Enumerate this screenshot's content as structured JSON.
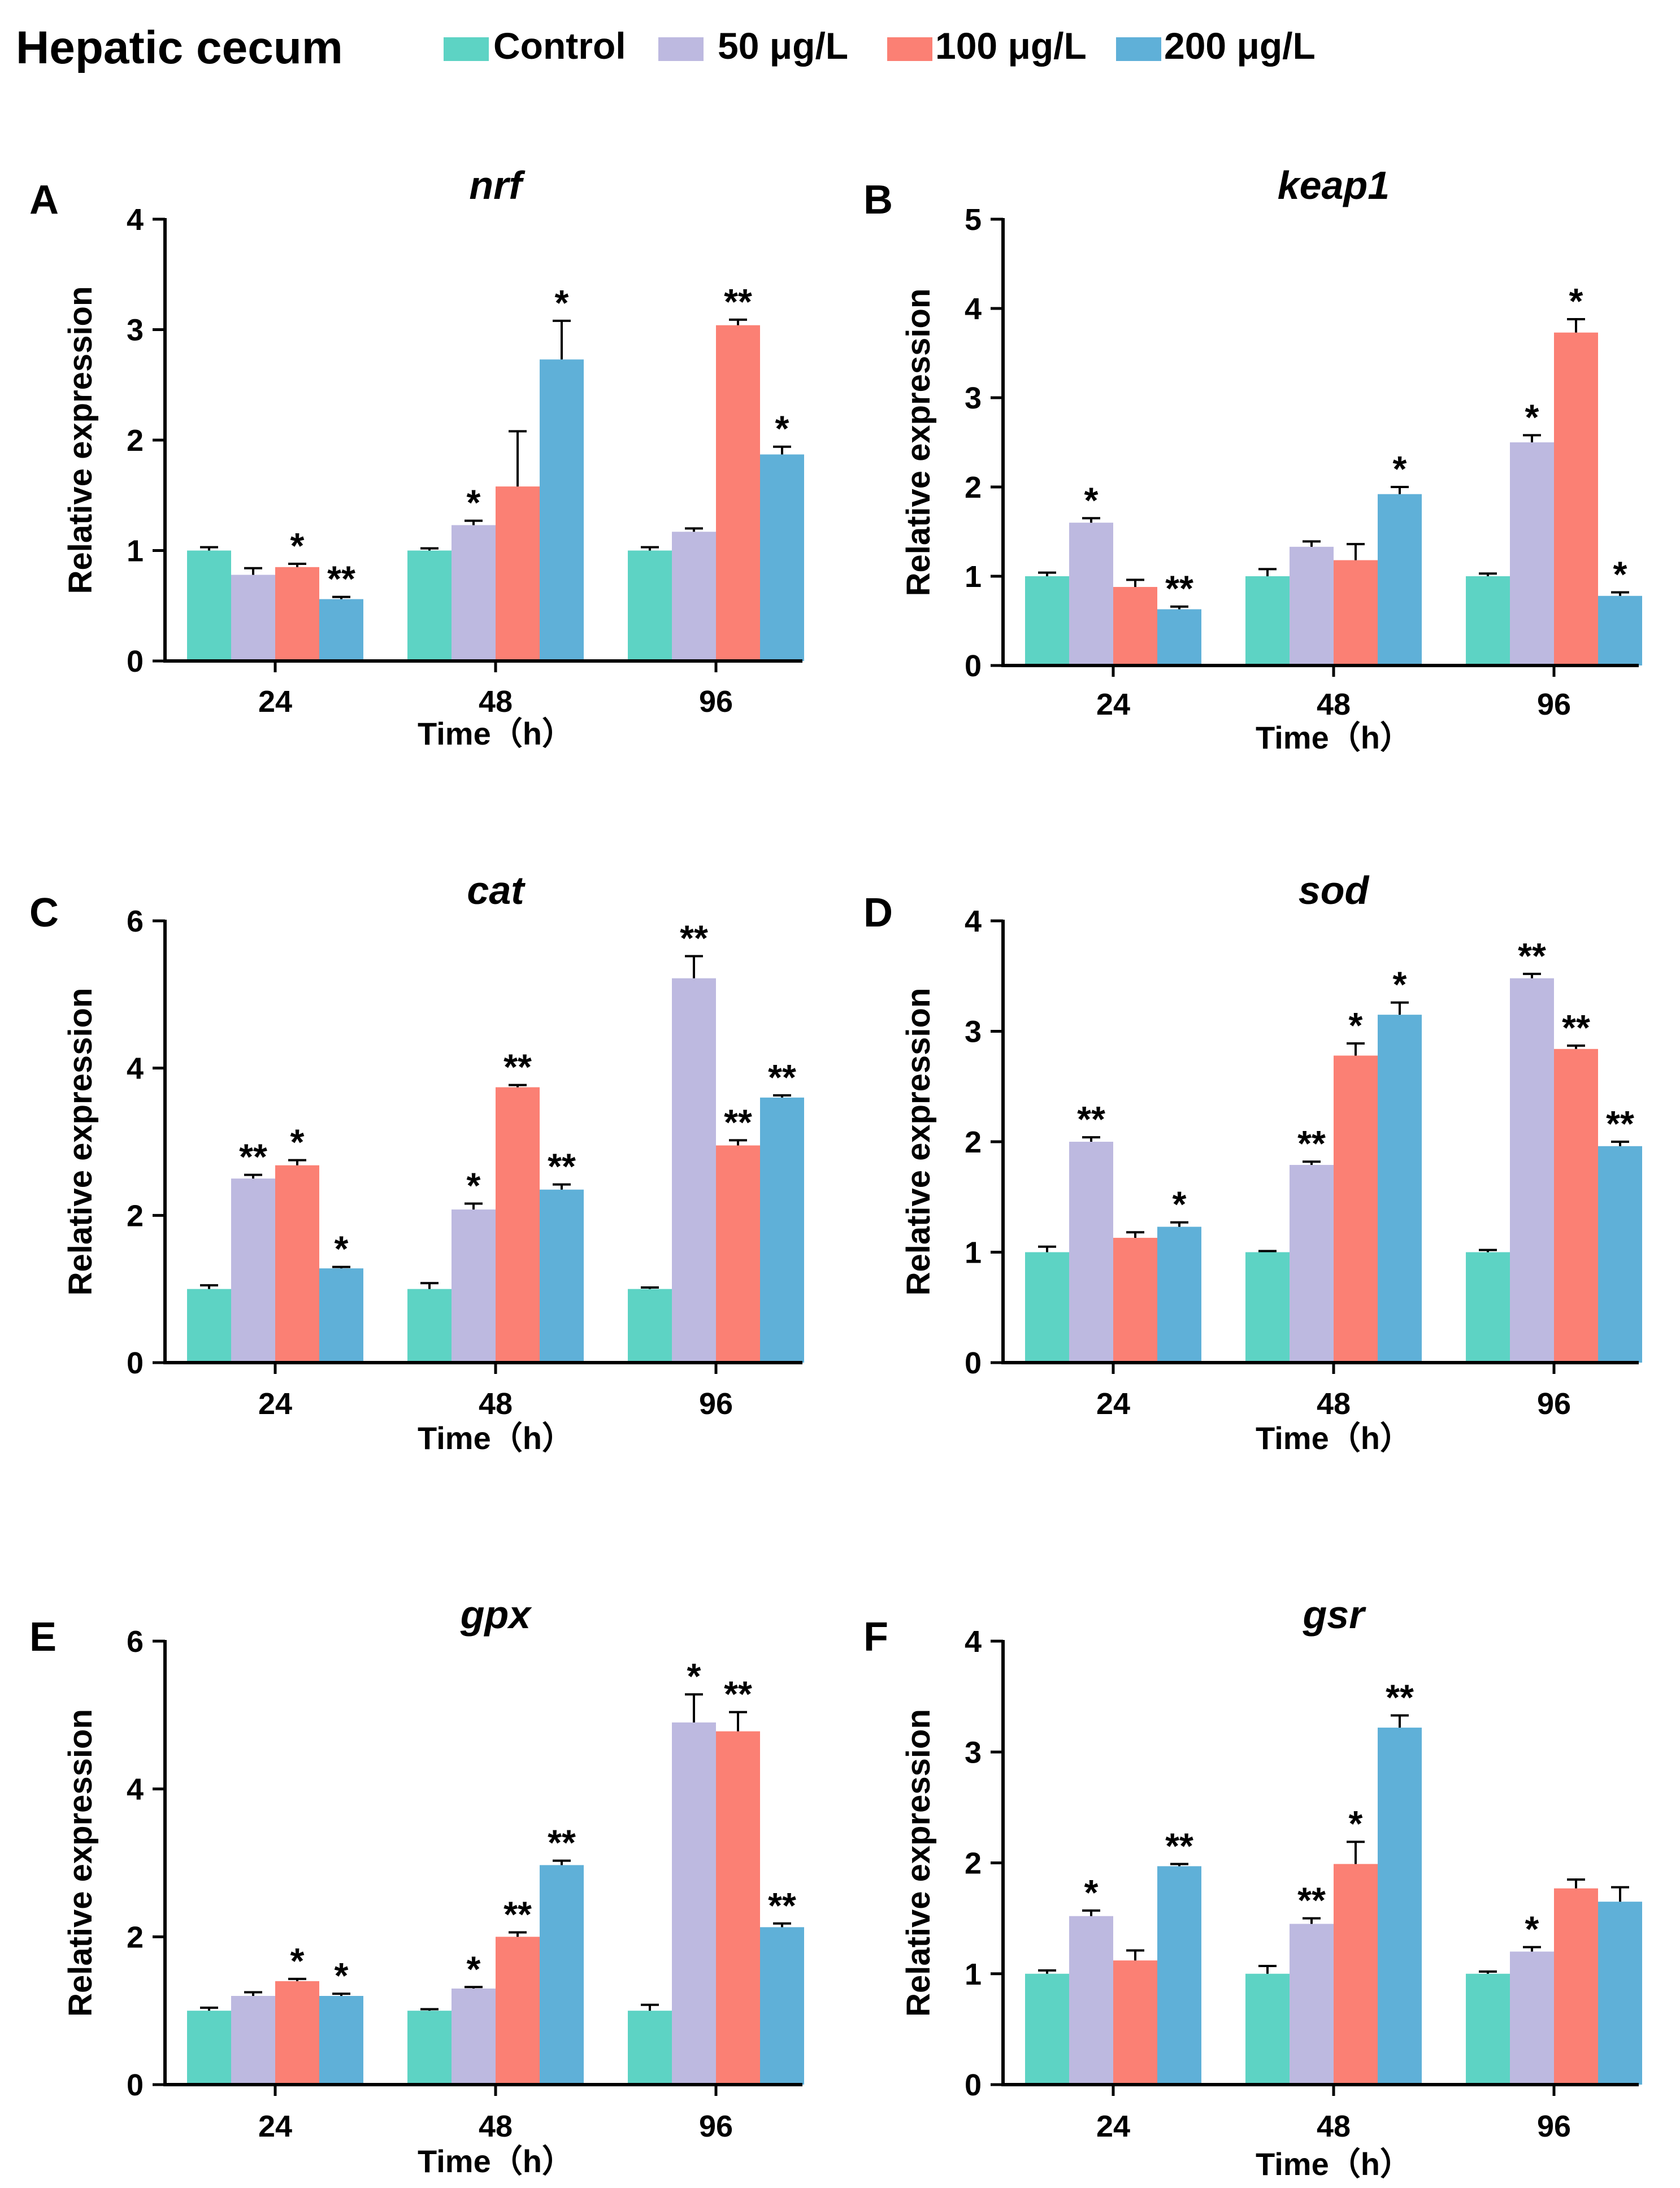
{
  "figure_title": "Hepatic cecum",
  "legend": [
    {
      "name": "Control",
      "color": "#5dd3c4"
    },
    {
      "name": "50 μg/L",
      "color": "#bdb9e0"
    },
    {
      "name": "100 μg/L",
      "color": "#fb8074"
    },
    {
      "name": "200 μg/L",
      "color": "#5fb0d8"
    }
  ],
  "chart_data": [
    {
      "panel": "A",
      "type": "bar",
      "title": "nrf",
      "xlabel": "Time（h）",
      "ylabel": "Relative expression",
      "ylim": [
        0,
        4
      ],
      "yticks": [
        "0",
        "1",
        "2",
        "3",
        "4"
      ],
      "categories": [
        "24",
        "48",
        "96"
      ],
      "series": [
        {
          "name": "Control",
          "values": [
            1.0,
            1.0,
            1.0
          ],
          "errors": [
            0.03,
            0.02,
            0.03
          ],
          "sig": [
            "",
            "",
            ""
          ]
        },
        {
          "name": "50 μg/L",
          "values": [
            0.78,
            1.23,
            1.17
          ],
          "errors": [
            0.06,
            0.04,
            0.03
          ],
          "sig": [
            "",
            "*",
            ""
          ]
        },
        {
          "name": "100 μg/L",
          "values": [
            0.85,
            1.58,
            3.04
          ],
          "errors": [
            0.03,
            0.5,
            0.05
          ],
          "sig": [
            "*",
            "",
            "**"
          ]
        },
        {
          "name": "200 μg/L",
          "values": [
            0.56,
            2.73,
            1.87
          ],
          "errors": [
            0.02,
            0.35,
            0.07
          ],
          "sig": [
            "**",
            "*",
            "*"
          ]
        }
      ]
    },
    {
      "panel": "B",
      "type": "bar",
      "title": "keap1",
      "xlabel": "Time（h）",
      "ylabel": "Relative expression",
      "ylim": [
        0,
        5
      ],
      "yticks": [
        "0",
        "1",
        "2",
        "3",
        "4",
        "5"
      ],
      "categories": [
        "24",
        "48",
        "96"
      ],
      "series": [
        {
          "name": "Control",
          "values": [
            1.0,
            1.0,
            1.0
          ],
          "errors": [
            0.04,
            0.08,
            0.03
          ],
          "sig": [
            "",
            "",
            ""
          ]
        },
        {
          "name": "50 μg/L",
          "values": [
            1.6,
            1.33,
            2.5
          ],
          "errors": [
            0.05,
            0.06,
            0.08
          ],
          "sig": [
            "*",
            "",
            "*"
          ]
        },
        {
          "name": "100 μg/L",
          "values": [
            0.88,
            1.18,
            3.73
          ],
          "errors": [
            0.08,
            0.18,
            0.15
          ],
          "sig": [
            "",
            "",
            "*"
          ]
        },
        {
          "name": "200 μg/L",
          "values": [
            0.63,
            1.92,
            0.78
          ],
          "errors": [
            0.03,
            0.08,
            0.04
          ],
          "sig": [
            "**",
            "*",
            "*"
          ]
        }
      ]
    },
    {
      "panel": "C",
      "type": "bar",
      "title": "cat",
      "xlabel": "Time（h）",
      "ylabel": "Relative expression",
      "ylim": [
        0,
        6
      ],
      "yticks": [
        "0",
        "2",
        "4",
        "6"
      ],
      "categories": [
        "24",
        "48",
        "96"
      ],
      "series": [
        {
          "name": "Control",
          "values": [
            1.0,
            1.0,
            1.0
          ],
          "errors": [
            0.05,
            0.08,
            0.02
          ],
          "sig": [
            "",
            "",
            ""
          ]
        },
        {
          "name": "50 μg/L",
          "values": [
            2.5,
            2.08,
            5.22
          ],
          "errors": [
            0.05,
            0.08,
            0.3
          ],
          "sig": [
            "**",
            "*",
            "**"
          ]
        },
        {
          "name": "100 μg/L",
          "values": [
            2.68,
            3.74,
            2.95
          ],
          "errors": [
            0.07,
            0.03,
            0.07
          ],
          "sig": [
            "*",
            "**",
            "**"
          ]
        },
        {
          "name": "200 μg/L",
          "values": [
            1.28,
            2.35,
            3.6
          ],
          "errors": [
            0.02,
            0.07,
            0.03
          ],
          "sig": [
            "*",
            "**",
            "**"
          ]
        }
      ]
    },
    {
      "panel": "D",
      "type": "bar",
      "title": "sod",
      "xlabel": "Time（h）",
      "ylabel": "Relative expression",
      "ylim": [
        0,
        4
      ],
      "yticks": [
        "0",
        "1",
        "2",
        "3",
        "4"
      ],
      "categories": [
        "24",
        "48",
        "96"
      ],
      "series": [
        {
          "name": "Control",
          "values": [
            1.0,
            1.0,
            1.0
          ],
          "errors": [
            0.05,
            0.01,
            0.02
          ],
          "sig": [
            "",
            "",
            ""
          ]
        },
        {
          "name": "50 μg/L",
          "values": [
            2.0,
            1.79,
            3.48
          ],
          "errors": [
            0.04,
            0.03,
            0.04
          ],
          "sig": [
            "**",
            "**",
            "**"
          ]
        },
        {
          "name": "100 μg/L",
          "values": [
            1.13,
            2.78,
            2.84
          ],
          "errors": [
            0.05,
            0.11,
            0.03
          ],
          "sig": [
            "",
            "*",
            "**"
          ]
        },
        {
          "name": "200 μg/L",
          "values": [
            1.23,
            3.15,
            1.96
          ],
          "errors": [
            0.04,
            0.11,
            0.04
          ],
          "sig": [
            "*",
            "*",
            "**"
          ]
        }
      ]
    },
    {
      "panel": "E",
      "type": "bar",
      "title": "gpx",
      "xlabel": "Time（h）",
      "ylabel": "Relative expression",
      "ylim": [
        0,
        6
      ],
      "yticks": [
        "0",
        "2",
        "4",
        "6"
      ],
      "categories": [
        "24",
        "48",
        "96"
      ],
      "series": [
        {
          "name": "Control",
          "values": [
            1.0,
            1.0,
            1.0
          ],
          "errors": [
            0.04,
            0.02,
            0.08
          ],
          "sig": [
            "",
            "",
            ""
          ]
        },
        {
          "name": "50 μg/L",
          "values": [
            1.2,
            1.3,
            4.9
          ],
          "errors": [
            0.05,
            0.02,
            0.38
          ],
          "sig": [
            "",
            "*",
            "*"
          ]
        },
        {
          "name": "100 μg/L",
          "values": [
            1.4,
            2.0,
            4.78
          ],
          "errors": [
            0.03,
            0.06,
            0.26
          ],
          "sig": [
            "*",
            "**",
            "**"
          ]
        },
        {
          "name": "200 μg/L",
          "values": [
            1.2,
            2.97,
            2.13
          ],
          "errors": [
            0.03,
            0.06,
            0.05
          ],
          "sig": [
            "*",
            "**",
            "**"
          ]
        }
      ]
    },
    {
      "panel": "F",
      "type": "bar",
      "title": "gsr",
      "xlabel": "Time（h）",
      "ylabel": "Relative expression",
      "ylim": [
        0,
        4
      ],
      "yticks": [
        "0",
        "1",
        "2",
        "3",
        "4"
      ],
      "categories": [
        "24",
        "48",
        "96"
      ],
      "series": [
        {
          "name": "Control",
          "values": [
            1.0,
            1.0,
            1.0
          ],
          "errors": [
            0.03,
            0.07,
            0.02
          ],
          "sig": [
            "",
            "",
            ""
          ]
        },
        {
          "name": "50 μg/L",
          "values": [
            1.52,
            1.45,
            1.2
          ],
          "errors": [
            0.05,
            0.05,
            0.04
          ],
          "sig": [
            "*",
            "**",
            "*"
          ]
        },
        {
          "name": "100 μg/L",
          "values": [
            1.12,
            1.99,
            1.77
          ],
          "errors": [
            0.09,
            0.2,
            0.08
          ],
          "sig": [
            "",
            "*",
            ""
          ]
        },
        {
          "name": "200 μg/L",
          "values": [
            1.97,
            3.22,
            1.65
          ],
          "errors": [
            0.02,
            0.11,
            0.13
          ],
          "sig": [
            "**",
            "**",
            ""
          ]
        }
      ]
    }
  ]
}
